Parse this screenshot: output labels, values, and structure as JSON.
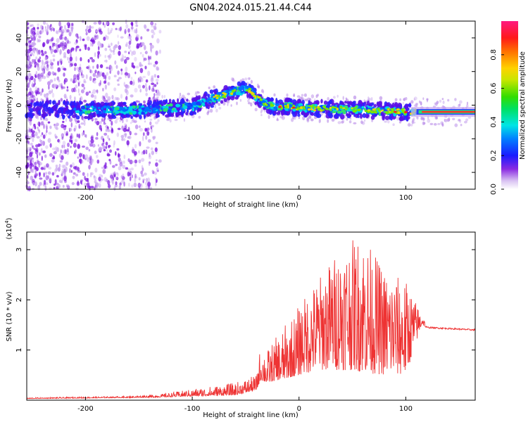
{
  "title": "GN04.2024.015.21.44.C44",
  "chart_data": [
    {
      "type": "heatmap",
      "xlabel": "Height of straight line (km)",
      "ylabel": "Frequency (Hz)",
      "xlim": [
        -255,
        165
      ],
      "ylim": [
        -50,
        50
      ],
      "xticks": [
        -200,
        -100,
        0,
        100
      ],
      "yticks": [
        -40,
        -20,
        0,
        20,
        40
      ],
      "ridge": {
        "x": [
          -255,
          -200,
          -150,
          -100,
          -80,
          -60,
          -48,
          -40,
          -35,
          -28,
          -20,
          -10,
          0,
          20,
          40,
          60,
          80,
          100,
          120,
          165
        ],
        "y": [
          -2,
          -3,
          -3,
          -1,
          4,
          8,
          10,
          5,
          2,
          0,
          -1,
          -1,
          -1.5,
          -2,
          -2.5,
          -3,
          -3.5,
          -4,
          -4,
          -4
        ]
      },
      "colorbar": {
        "label": "Normalized spectral amplitude",
        "range": [
          0.0,
          1.0
        ],
        "ticks": [
          "0.0",
          "0.2",
          "0.4",
          "0.6",
          "0.8"
        ],
        "tick_values": [
          0.0,
          0.2,
          0.4,
          0.6,
          0.8
        ]
      }
    },
    {
      "type": "line",
      "xlabel": "Height of straight line (km)",
      "ylabel": "SNR (10 * v/v)",
      "y_multiplier": "(x10",
      "y_multiplier_exp": "4",
      "y_multiplier_close": ")",
      "xlim": [
        -255,
        165
      ],
      "ylim": [
        0,
        3.35
      ],
      "xticks": [
        -200,
        -100,
        0,
        100
      ],
      "yticks": [
        1,
        2,
        3
      ],
      "color": "#ee3333",
      "envelope": {
        "x": [
          -255,
          -160,
          -130,
          -100,
          -60,
          -40,
          -36,
          -30,
          -20,
          -10,
          0,
          20,
          30,
          40,
          50,
          60,
          80,
          100,
          115,
          120,
          165
        ],
        "base": [
          0.03,
          0.05,
          0.06,
          0.08,
          0.1,
          0.2,
          0.4,
          0.35,
          0.4,
          0.45,
          0.5,
          0.6,
          0.6,
          0.6,
          0.6,
          0.55,
          0.5,
          0.5,
          1.5,
          1.45,
          1.4
        ],
        "peak": [
          0.05,
          0.08,
          0.12,
          0.22,
          0.35,
          0.5,
          1.1,
          1.0,
          1.3,
          1.6,
          1.9,
          2.5,
          2.8,
          3.1,
          3.2,
          3.3,
          2.6,
          2.4,
          1.7,
          1.5,
          1.42
        ]
      }
    }
  ]
}
